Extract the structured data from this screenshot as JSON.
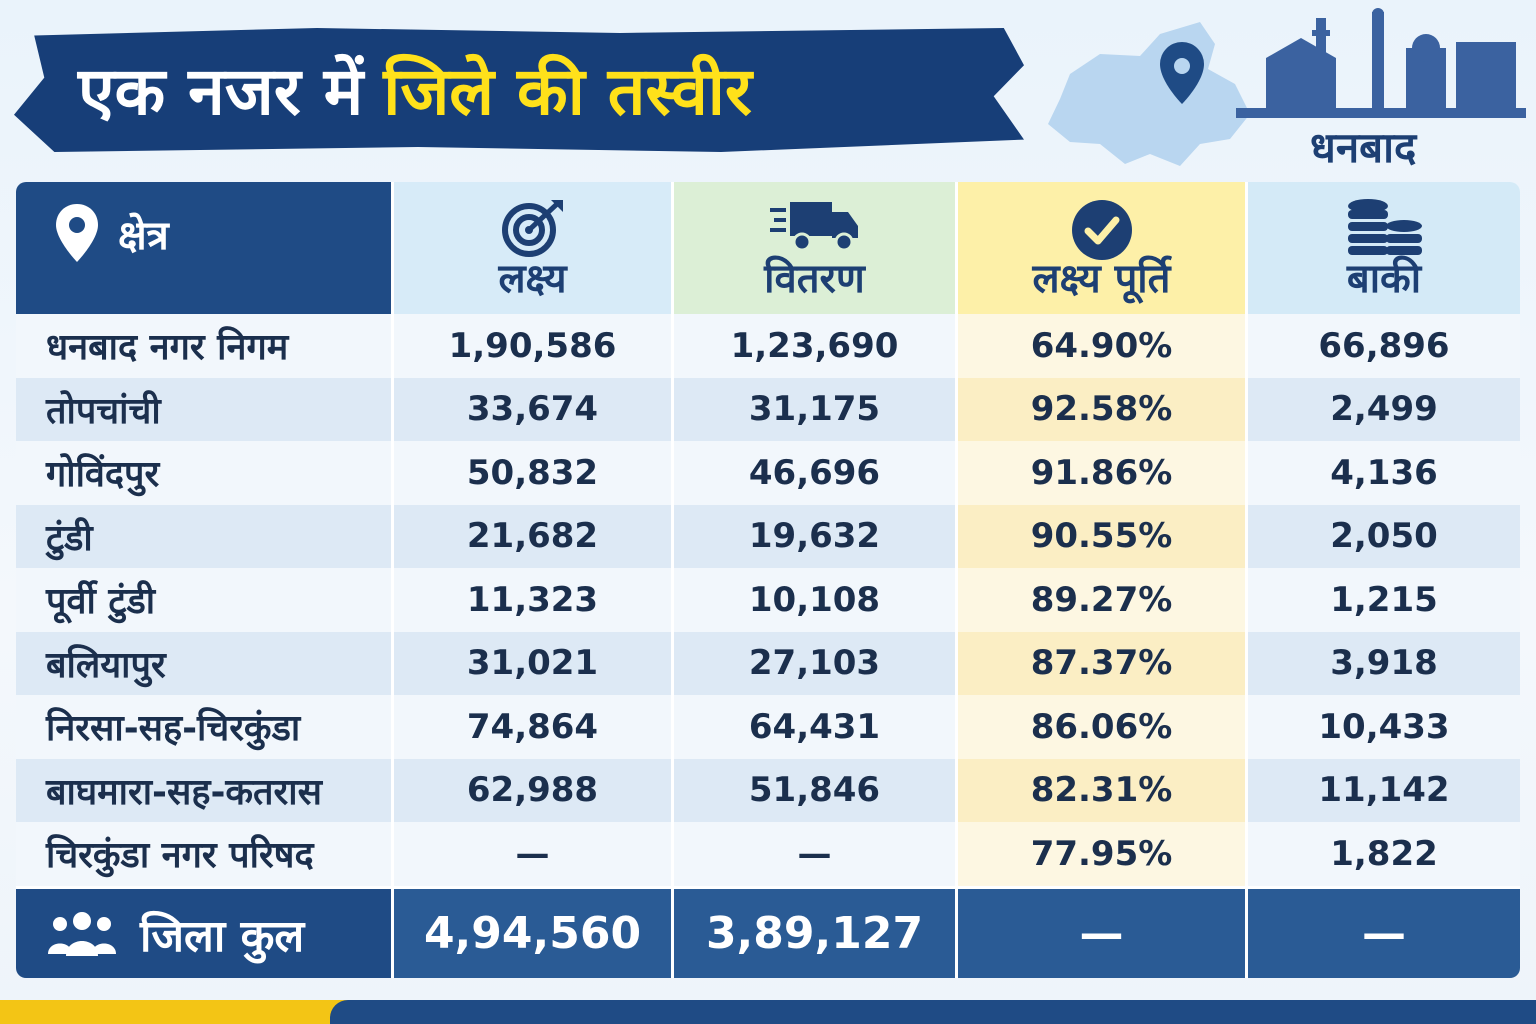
{
  "title": {
    "part1": "एक नजर में",
    "part2": "जिले की तस्वीर"
  },
  "district": "धनबाद",
  "columns": {
    "area": "क्षेत्र",
    "target": "लक्ष्य",
    "distribution": "वितरण",
    "achievement": "लक्ष्य पूर्ति",
    "remaining": "बाकी"
  },
  "rows": [
    {
      "area": "धनबाद नगर निगम",
      "target": "1,90,586",
      "distribution": "1,23,690",
      "achievement": "64.90%",
      "remaining": "66,896"
    },
    {
      "area": "तोपचांची",
      "target": "33,674",
      "distribution": "31,175",
      "achievement": "92.58%",
      "remaining": "2,499"
    },
    {
      "area": "गोविंदपुर",
      "target": "50,832",
      "distribution": "46,696",
      "achievement": "91.86%",
      "remaining": "4,136"
    },
    {
      "area": "टुंडी",
      "target": "21,682",
      "distribution": "19,632",
      "achievement": "90.55%",
      "remaining": "2,050"
    },
    {
      "area": "पूर्वी टुंडी",
      "target": "11,323",
      "distribution": "10,108",
      "achievement": "89.27%",
      "remaining": "1,215"
    },
    {
      "area": "बलियापुर",
      "target": "31,021",
      "distribution": "27,103",
      "achievement": "87.37%",
      "remaining": "3,918"
    },
    {
      "area": "निरसा-सह-चिरकुंडा",
      "target": "74,864",
      "distribution": "64,431",
      "achievement": "86.06%",
      "remaining": "10,433"
    },
    {
      "area": "बाघमारा-सह-कतरास",
      "target": "62,988",
      "distribution": "51,846",
      "achievement": "82.31%",
      "remaining": "11,142"
    },
    {
      "area": "चिरकुंडा नगर परिषद",
      "target": "—",
      "distribution": "—",
      "achievement": "77.95%",
      "remaining": "1,822"
    }
  ],
  "total": {
    "label": "जिला कुल",
    "target": "4,94,560",
    "distribution": "3,89,127",
    "achievement": "—",
    "remaining": "—"
  },
  "icons": {
    "area": "location-pin-icon",
    "target": "target-icon",
    "distribution": "delivery-truck-icon",
    "achievement": "check-circle-icon",
    "remaining": "coin-stack-icon",
    "total": "people-group-icon"
  },
  "colors": {
    "navy": "#1f4b85",
    "yellow": "#ffe11a",
    "target_bg": "#d7ebf8",
    "distribution_bg": "#dcefd6",
    "achievement_bg": "#fdf0a8"
  }
}
